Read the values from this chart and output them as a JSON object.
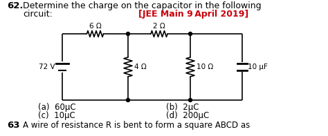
{
  "title_number": "62.",
  "title_text1": "Determine the charge on the capacitor in the following",
  "title_text2": "circuit:",
  "title_ref": "[JEE Main 9 April 2019]",
  "voltage": "72 V",
  "r1": "6 Ω",
  "r2": "2 Ω",
  "r3": "4 Ω",
  "r4": "10 Ω",
  "cap": "10 μF",
  "opt_a": "(a)  60μC",
  "opt_b": "(b)  2μC",
  "opt_c": "(c)  10μC",
  "opt_d": "(d)  200μC",
  "next_q": "63",
  "next_text": "A wire of resistance R is bent to form a square ABCD as",
  "ref_color": "#c8000a",
  "text_color": "#000000",
  "bg_color": "#ffffff"
}
